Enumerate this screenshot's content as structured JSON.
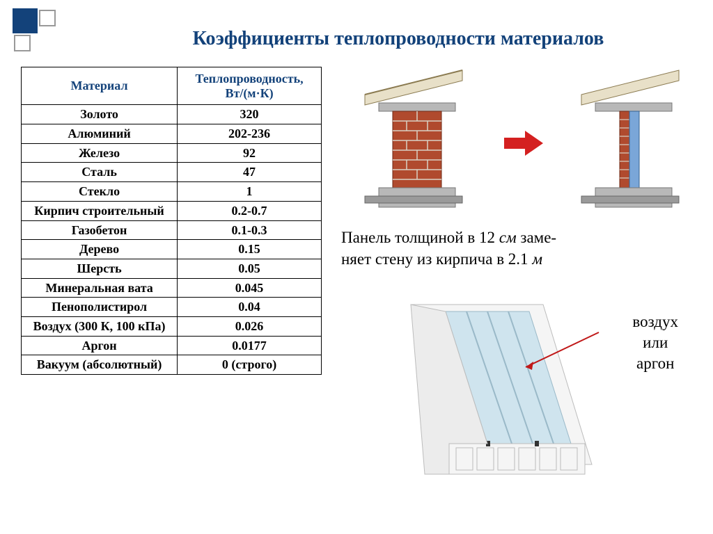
{
  "title": "Коэффициенты теплопроводности материалов",
  "table": {
    "header": {
      "col1": "Материал",
      "col2": "Теплопроводность, Вт/(м·К)"
    },
    "rows": [
      {
        "material": "Золото",
        "value": "320"
      },
      {
        "material": "Алюминий",
        "value": "202-236"
      },
      {
        "material": "Железо",
        "value": "92"
      },
      {
        "material": "Сталь",
        "value": "47"
      },
      {
        "material": "Стекло",
        "value": "1"
      },
      {
        "material": "Кирпич строительный",
        "value": "0.2-0.7"
      },
      {
        "material": "Газобетон",
        "value": "0.1-0.3"
      },
      {
        "material": "Дерево",
        "value": "0.15"
      },
      {
        "material": "Шерсть",
        "value": "0.05"
      },
      {
        "material": "Минеральная вата",
        "value": "0.045"
      },
      {
        "material": "Пенополистирол",
        "value": "0.04"
      },
      {
        "material": "Воздух (300 К, 100 кПа)",
        "value": "0.026"
      },
      {
        "material": "Аргон",
        "value": "0.0177"
      },
      {
        "material": "Вакуум (абсолютный)",
        "value": "0 (строго)"
      }
    ]
  },
  "caption": {
    "line1": "Панель толщиной в 12 ",
    "unit1": "см",
    "line1b": " заме-",
    "line2": "няет стену из кирпича в 2.1 ",
    "unit2": "м"
  },
  "gas_label": {
    "l1": "воздух",
    "l2": "или",
    "l3": "аргон"
  },
  "colors": {
    "title": "#13427a",
    "brick": "#b04a2e",
    "mortar": "#d9d2c5",
    "concrete": "#b8b8b8",
    "insulation": "#7aa6d8",
    "roof_fill": "#e8e0c8",
    "arrow": "#d42020",
    "frame_white": "#f5f5f5",
    "frame_shadow": "#cfcfcf",
    "glass": "#cfe4ee",
    "seal": "#333333",
    "pointer": "#c01818"
  }
}
